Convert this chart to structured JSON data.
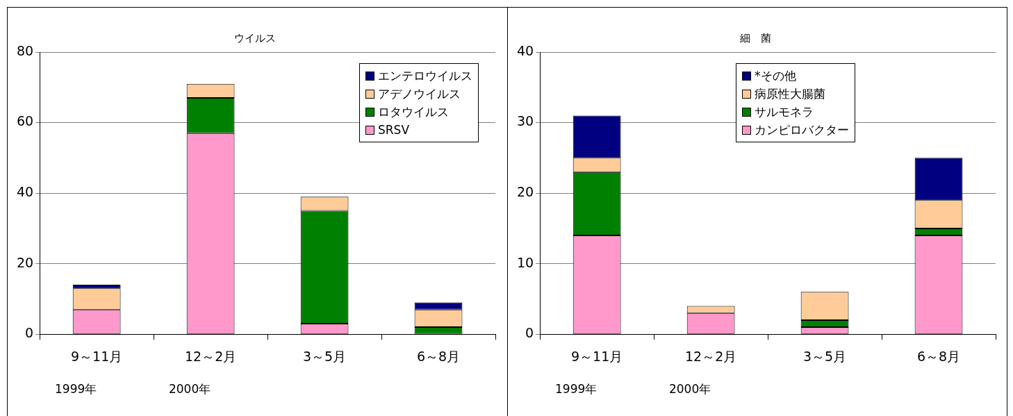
{
  "chart_data": [
    {
      "type": "bar",
      "title": "ウイルス",
      "categories": [
        "9～11月",
        "12～2月",
        "3～5月",
        "6～8月"
      ],
      "stacked": true,
      "series": [
        {
          "name": "SRSV",
          "color": "#ff99cc",
          "values": [
            7,
            57,
            3,
            0
          ]
        },
        {
          "name": "ロタウイルス",
          "color": "#008000",
          "values": [
            0,
            10,
            32,
            2
          ]
        },
        {
          "name": "アデノウイルス",
          "color": "#ffcc99",
          "values": [
            6,
            4,
            4,
            5
          ]
        },
        {
          "name": "エンテロウイルス",
          "color": "#000080",
          "values": [
            1,
            0,
            0,
            2
          ]
        }
      ],
      "ylim": [
        0,
        80
      ],
      "yticks": [
        0,
        20,
        40,
        60,
        80
      ],
      "grid": "y",
      "legend": "top right",
      "annotations": [
        "1999年",
        "2000年"
      ]
    },
    {
      "type": "bar",
      "title": "細　菌",
      "categories": [
        "9～11月",
        "12～2月",
        "3～5月",
        "6～8月"
      ],
      "stacked": true,
      "series": [
        {
          "name": "カンピロバクター",
          "color": "#ff99cc",
          "values": [
            14,
            3,
            1,
            14
          ]
        },
        {
          "name": "サルモネラ",
          "color": "#008000",
          "values": [
            9,
            0,
            1,
            1
          ]
        },
        {
          "name": "病原性大腸菌",
          "color": "#ffcc99",
          "values": [
            2,
            1,
            4,
            4
          ]
        },
        {
          "name": "*その他",
          "color": "#000080",
          "values": [
            6,
            0,
            0,
            6
          ]
        }
      ],
      "ylim": [
        0,
        40
      ],
      "yticks": [
        0,
        10,
        20,
        30,
        40
      ],
      "grid": "y",
      "legend": "top",
      "annotations": [
        "1999年",
        "2000年"
      ]
    }
  ]
}
